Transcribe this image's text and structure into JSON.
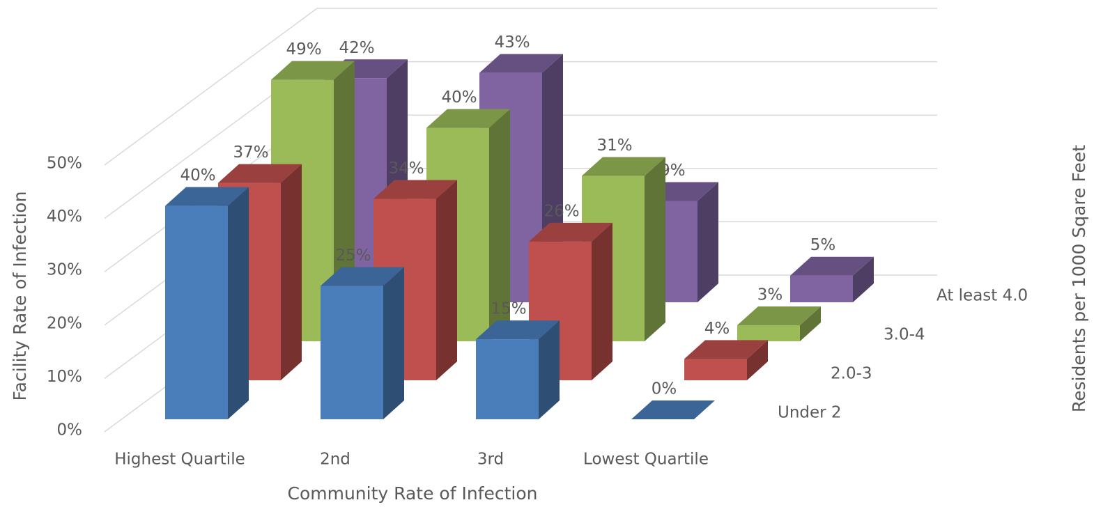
{
  "chart_data": {
    "type": "bar3d",
    "x_label": "Community Rate of Infection",
    "y_label": "Facility Rate of Infection",
    "z_label": "Residents per 1000 Sqare Feet",
    "categories": [
      "Highest Quartile",
      "2nd",
      "3rd",
      "Lowest Quartile"
    ],
    "series": [
      {
        "name": "Under 2",
        "color": "#4a7ebb",
        "values": [
          40,
          25,
          15,
          0
        ],
        "value_labels": [
          "40%",
          "25%",
          "15%",
          "0%"
        ]
      },
      {
        "name": "2.0-3",
        "color": "#c0504d",
        "values": [
          37,
          34,
          26,
          4
        ],
        "value_labels": [
          "37%",
          "34%",
          "26%",
          "4%"
        ]
      },
      {
        "name": "3.0-4",
        "color": "#9bbb59",
        "values": [
          49,
          40,
          31,
          3
        ],
        "value_labels": [
          "49%",
          "40%",
          "31%",
          "3%"
        ]
      },
      {
        "name": "At least 4.0",
        "color": "#8064a2",
        "values": [
          42,
          43,
          19,
          5
        ],
        "value_labels": [
          "42%",
          "43%",
          "19%",
          "5%"
        ]
      }
    ],
    "ylim": [
      0,
      50
    ],
    "yticks": [
      {
        "value": 0,
        "label": "0%"
      },
      {
        "value": 10,
        "label": "10%"
      },
      {
        "value": 20,
        "label": "20%"
      },
      {
        "value": 30,
        "label": "30%"
      },
      {
        "value": 40,
        "label": "40%"
      },
      {
        "value": 50,
        "label": "50%"
      }
    ],
    "grid": true
  }
}
